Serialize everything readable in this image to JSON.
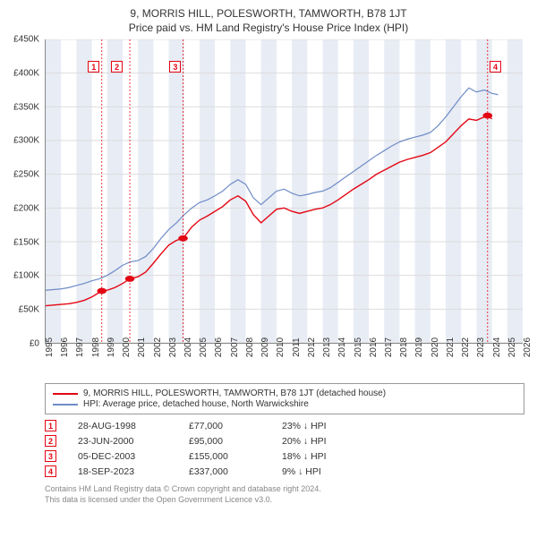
{
  "title": {
    "line1": "9, MORRIS HILL, POLESWORTH, TAMWORTH, B78 1JT",
    "line2": "Price paid vs. HM Land Registry's House Price Index (HPI)"
  },
  "chart": {
    "type": "line",
    "background_color": "#ffffff",
    "grid_color": "#dddddd",
    "band_color": "#e8ecf4",
    "xlim": [
      1995,
      2026
    ],
    "ylim": [
      0,
      450000
    ],
    "ytick_step": 50000,
    "yticks": [
      "£0",
      "£50K",
      "£100K",
      "£150K",
      "£200K",
      "£250K",
      "£300K",
      "£350K",
      "£400K",
      "£450K"
    ],
    "xticks": [
      "1995",
      "1996",
      "1997",
      "1998",
      "1999",
      "2000",
      "2001",
      "2002",
      "2003",
      "2004",
      "2005",
      "2006",
      "2007",
      "2008",
      "2009",
      "2010",
      "2011",
      "2012",
      "2013",
      "2014",
      "2015",
      "2016",
      "2017",
      "2018",
      "2019",
      "2020",
      "2021",
      "2022",
      "2023",
      "2024",
      "2025",
      "2026"
    ],
    "band_years": [
      [
        1995,
        1996
      ],
      [
        1997,
        1998
      ],
      [
        1999,
        2000
      ],
      [
        2001,
        2002
      ],
      [
        2003,
        2004
      ],
      [
        2005,
        2006
      ],
      [
        2007,
        2008
      ],
      [
        2009,
        2010
      ],
      [
        2011,
        2012
      ],
      [
        2013,
        2014
      ],
      [
        2015,
        2016
      ],
      [
        2017,
        2018
      ],
      [
        2019,
        2020
      ],
      [
        2021,
        2022
      ],
      [
        2023,
        2024
      ],
      [
        2025,
        2026
      ]
    ],
    "series_red": {
      "color": "#e30613",
      "width": 1.4,
      "points": [
        [
          1995.0,
          55000
        ],
        [
          1995.5,
          56000
        ],
        [
          1996.0,
          57000
        ],
        [
          1996.5,
          58000
        ],
        [
          1997.0,
          60000
        ],
        [
          1997.5,
          63000
        ],
        [
          1998.0,
          68000
        ],
        [
          1998.65,
          77000
        ],
        [
          1999.0,
          78000
        ],
        [
          1999.5,
          82000
        ],
        [
          2000.0,
          88000
        ],
        [
          2000.47,
          95000
        ],
        [
          2001.0,
          98000
        ],
        [
          2001.5,
          105000
        ],
        [
          2002.0,
          118000
        ],
        [
          2002.5,
          132000
        ],
        [
          2003.0,
          145000
        ],
        [
          2003.5,
          152000
        ],
        [
          2003.93,
          155000
        ],
        [
          2004.5,
          172000
        ],
        [
          2005.0,
          182000
        ],
        [
          2005.5,
          188000
        ],
        [
          2006.0,
          195000
        ],
        [
          2006.5,
          202000
        ],
        [
          2007.0,
          212000
        ],
        [
          2007.5,
          218000
        ],
        [
          2008.0,
          210000
        ],
        [
          2008.5,
          190000
        ],
        [
          2009.0,
          178000
        ],
        [
          2009.5,
          188000
        ],
        [
          2010.0,
          198000
        ],
        [
          2010.5,
          200000
        ],
        [
          2011.0,
          195000
        ],
        [
          2011.5,
          192000
        ],
        [
          2012.0,
          195000
        ],
        [
          2012.5,
          198000
        ],
        [
          2013.0,
          200000
        ],
        [
          2013.5,
          205000
        ],
        [
          2014.0,
          212000
        ],
        [
          2014.5,
          220000
        ],
        [
          2015.0,
          228000
        ],
        [
          2015.5,
          235000
        ],
        [
          2016.0,
          242000
        ],
        [
          2016.5,
          250000
        ],
        [
          2017.0,
          256000
        ],
        [
          2017.5,
          262000
        ],
        [
          2018.0,
          268000
        ],
        [
          2018.5,
          272000
        ],
        [
          2019.0,
          275000
        ],
        [
          2019.5,
          278000
        ],
        [
          2020.0,
          282000
        ],
        [
          2020.5,
          290000
        ],
        [
          2021.0,
          298000
        ],
        [
          2021.5,
          310000
        ],
        [
          2022.0,
          322000
        ],
        [
          2022.5,
          332000
        ],
        [
          2023.0,
          330000
        ],
        [
          2023.5,
          335000
        ],
        [
          2023.72,
          337000
        ],
        [
          2024.0,
          332000
        ]
      ]
    },
    "series_blue": {
      "color": "#6e8cc7",
      "width": 1.2,
      "points": [
        [
          1995.0,
          78000
        ],
        [
          1995.5,
          79000
        ],
        [
          1996.0,
          80000
        ],
        [
          1996.5,
          82000
        ],
        [
          1997.0,
          85000
        ],
        [
          1997.5,
          88000
        ],
        [
          1998.0,
          92000
        ],
        [
          1998.5,
          95000
        ],
        [
          1999.0,
          100000
        ],
        [
          1999.5,
          107000
        ],
        [
          2000.0,
          115000
        ],
        [
          2000.5,
          120000
        ],
        [
          2001.0,
          122000
        ],
        [
          2001.5,
          128000
        ],
        [
          2002.0,
          140000
        ],
        [
          2002.5,
          155000
        ],
        [
          2003.0,
          168000
        ],
        [
          2003.5,
          178000
        ],
        [
          2004.0,
          190000
        ],
        [
          2004.5,
          200000
        ],
        [
          2005.0,
          208000
        ],
        [
          2005.5,
          212000
        ],
        [
          2006.0,
          218000
        ],
        [
          2006.5,
          225000
        ],
        [
          2007.0,
          235000
        ],
        [
          2007.5,
          242000
        ],
        [
          2008.0,
          235000
        ],
        [
          2008.5,
          215000
        ],
        [
          2009.0,
          205000
        ],
        [
          2009.5,
          215000
        ],
        [
          2010.0,
          225000
        ],
        [
          2010.5,
          228000
        ],
        [
          2011.0,
          222000
        ],
        [
          2011.5,
          218000
        ],
        [
          2012.0,
          220000
        ],
        [
          2012.5,
          223000
        ],
        [
          2013.0,
          225000
        ],
        [
          2013.5,
          230000
        ],
        [
          2014.0,
          238000
        ],
        [
          2014.5,
          246000
        ],
        [
          2015.0,
          254000
        ],
        [
          2015.5,
          262000
        ],
        [
          2016.0,
          270000
        ],
        [
          2016.5,
          278000
        ],
        [
          2017.0,
          285000
        ],
        [
          2017.5,
          292000
        ],
        [
          2018.0,
          298000
        ],
        [
          2018.5,
          302000
        ],
        [
          2019.0,
          305000
        ],
        [
          2019.5,
          308000
        ],
        [
          2020.0,
          312000
        ],
        [
          2020.5,
          322000
        ],
        [
          2021.0,
          335000
        ],
        [
          2021.5,
          350000
        ],
        [
          2022.0,
          365000
        ],
        [
          2022.5,
          378000
        ],
        [
          2023.0,
          372000
        ],
        [
          2023.5,
          375000
        ],
        [
          2024.0,
          370000
        ],
        [
          2024.4,
          368000
        ]
      ]
    },
    "markers": [
      {
        "n": "1",
        "year": 1998.65,
        "price": 77000,
        "boxpos": [
          1998.1,
          410000
        ]
      },
      {
        "n": "2",
        "year": 2000.47,
        "price": 95000,
        "boxpos": [
          1999.6,
          410000
        ]
      },
      {
        "n": "3",
        "year": 2003.93,
        "price": 155000,
        "boxpos": [
          2003.4,
          410000
        ]
      },
      {
        "n": "4",
        "year": 2023.72,
        "price": 337000,
        "boxpos": [
          2024.2,
          410000
        ]
      }
    ],
    "marker_vline_color": "#e30613",
    "marker_vline_dash": "2,2"
  },
  "legend": {
    "items": [
      {
        "color": "#e30613",
        "label": "9, MORRIS HILL, POLESWORTH, TAMWORTH, B78 1JT (detached house)"
      },
      {
        "color": "#6e8cc7",
        "label": "HPI: Average price, detached house, North Warwickshire"
      }
    ]
  },
  "transactions": [
    {
      "n": "1",
      "date": "28-AUG-1998",
      "price": "£77,000",
      "delta": "23% ↓ HPI"
    },
    {
      "n": "2",
      "date": "23-JUN-2000",
      "price": "£95,000",
      "delta": "20% ↓ HPI"
    },
    {
      "n": "3",
      "date": "05-DEC-2003",
      "price": "£155,000",
      "delta": "18% ↓ HPI"
    },
    {
      "n": "4",
      "date": "18-SEP-2023",
      "price": "£337,000",
      "delta": "9% ↓ HPI"
    }
  ],
  "footer": {
    "line1": "Contains HM Land Registry data © Crown copyright and database right 2024.",
    "line2": "This data is licensed under the Open Government Licence v3.0."
  }
}
